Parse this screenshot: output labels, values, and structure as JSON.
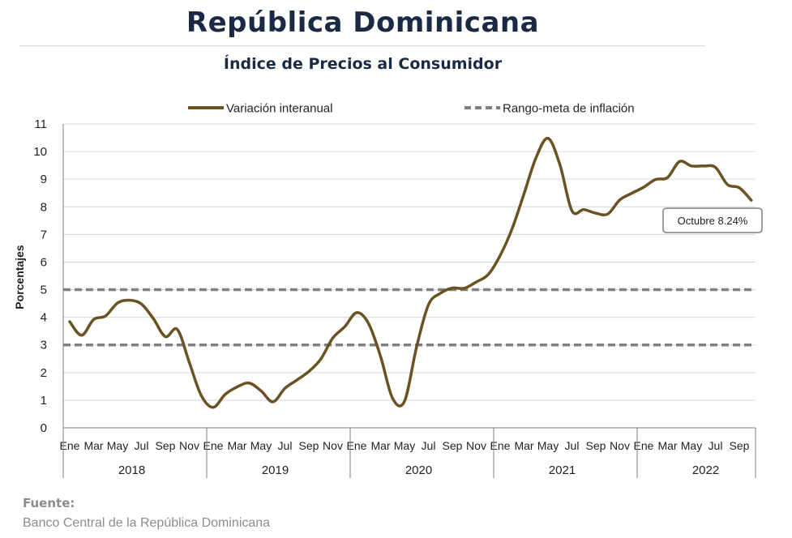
{
  "header": {
    "title": "República Dominicana",
    "subtitle": "Índice de Precios al Consumidor"
  },
  "colors": {
    "series_line": "#6b5223",
    "target_band": "#808080",
    "grid": "#d9d9d9",
    "title": "#1b2a44",
    "source": "#8c8c8c"
  },
  "chart_data": {
    "type": "line",
    "ylabel": "Porcentajes",
    "ylim": [
      0,
      11
    ],
    "yticks": [
      0,
      1,
      2,
      3,
      4,
      5,
      6,
      7,
      8,
      9,
      10,
      11
    ],
    "grid": "horizontal",
    "legend_position": "top",
    "month_labels": [
      "Ene",
      "Mar",
      "May",
      "Jul",
      "Sep",
      "Nov"
    ],
    "years": [
      "2018",
      "2019",
      "2020",
      "2021",
      "2022"
    ],
    "series": [
      {
        "name": "Variación interanual",
        "style": "solid",
        "start": "2018-01",
        "end": "2022-10",
        "values": [
          3.84,
          3.35,
          3.92,
          4.05,
          4.52,
          4.62,
          4.48,
          3.95,
          3.3,
          3.56,
          2.37,
          1.17,
          0.74,
          1.21,
          1.48,
          1.62,
          1.34,
          0.94,
          1.43,
          1.73,
          2.04,
          2.49,
          3.25,
          3.66,
          4.17,
          3.77,
          2.58,
          1.07,
          0.96,
          2.91,
          4.45,
          4.87,
          5.06,
          5.05,
          5.28,
          5.55,
          6.24,
          7.21,
          8.48,
          9.78,
          10.48,
          9.52,
          7.86,
          7.9,
          7.77,
          7.74,
          8.25,
          8.49,
          8.71,
          8.99,
          9.06,
          9.64,
          9.48,
          9.48,
          9.43,
          8.81,
          8.69,
          8.24
        ]
      },
      {
        "name": "Rango-meta de inflación",
        "style": "dashed",
        "values_upper": 5,
        "values_lower": 3
      }
    ],
    "annotations": [
      {
        "text": "Octubre 8.24%",
        "x": "2022-10",
        "y": 8.24
      }
    ]
  },
  "source": {
    "label": "Fuente:",
    "text": "Banco Central de la República Dominicana"
  }
}
